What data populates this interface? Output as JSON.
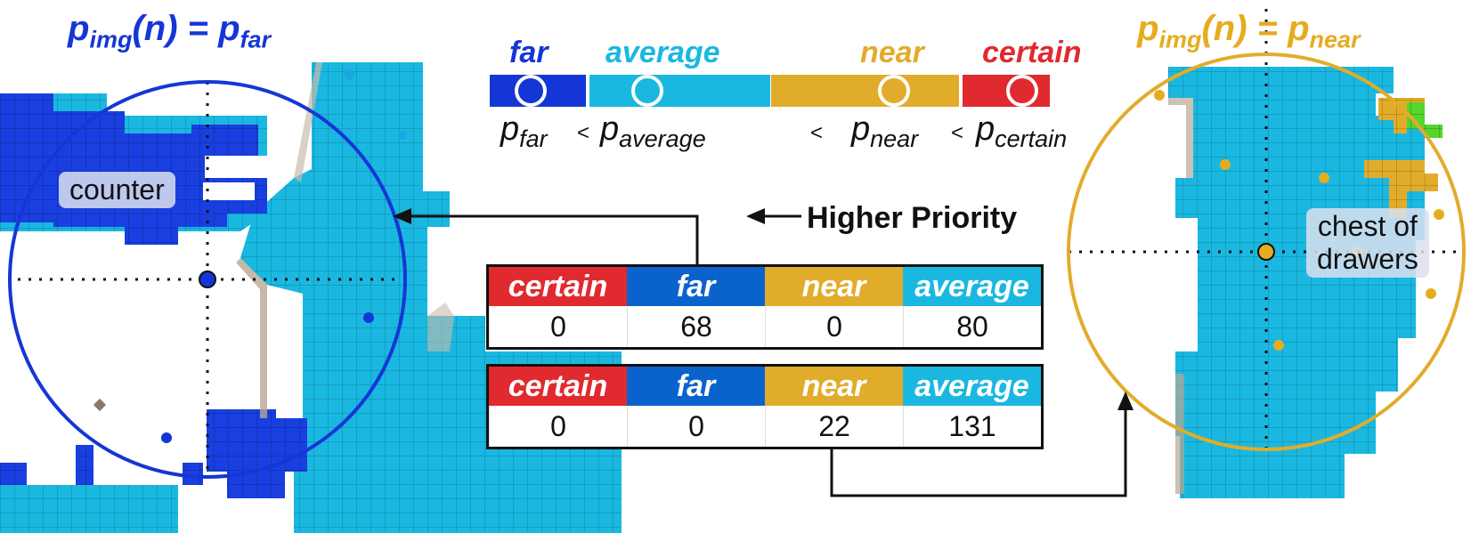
{
  "titles": {
    "left": {
      "base": "p",
      "base_sub": "img",
      "arg": "(n) = p",
      "rhs_sub": "far",
      "color": "#1536d6"
    },
    "right": {
      "base": "p",
      "base_sub": "img",
      "arg": "(n) = p",
      "rhs_sub": "near",
      "color": "#e6ac1e"
    }
  },
  "legend": {
    "labels": {
      "far": "far",
      "average": "average",
      "near": "near",
      "certain": "certain"
    },
    "colors": {
      "far": "#1536d6",
      "average": "#1ab8e0",
      "near": "#e2ac2b",
      "certain": "#e12a2f"
    },
    "inequality": {
      "far": {
        "base": "p",
        "sub": "far"
      },
      "average": {
        "base": "p",
        "sub": "average"
      },
      "near": {
        "base": "p",
        "sub": "near"
      },
      "certain": {
        "base": "p",
        "sub": "certain"
      },
      "lt": "<"
    }
  },
  "priority_label": "Higher Priority",
  "tables": [
    {
      "headers": [
        {
          "label": "certain",
          "color": "#e12a2f"
        },
        {
          "label": "far",
          "color": "#0a63cd"
        },
        {
          "label": "near",
          "color": "#e2ac2b"
        },
        {
          "label": "average",
          "color": "#1ab8e0"
        }
      ],
      "values": [
        "0",
        "68",
        "0",
        "80"
      ]
    },
    {
      "headers": [
        {
          "label": "certain",
          "color": "#e12a2f"
        },
        {
          "label": "far",
          "color": "#0a63cd"
        },
        {
          "label": "near",
          "color": "#e2ac2b"
        },
        {
          "label": "average",
          "color": "#1ab8e0"
        }
      ],
      "values": [
        "0",
        "0",
        "22",
        "131"
      ]
    }
  ],
  "objects": {
    "left": "counter",
    "right_line1": "chest of",
    "right_line2": "drawers"
  },
  "map_colors": {
    "cell": "#1ab8e0",
    "cell_far": "#1536d6",
    "grid": "#0e7fa0",
    "wall": "#b9a895"
  }
}
